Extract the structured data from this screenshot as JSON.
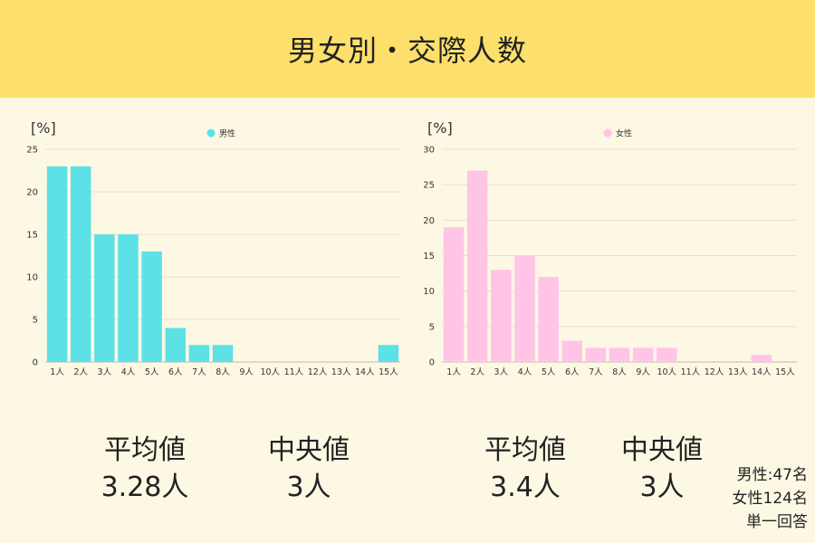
{
  "title": "男女別・交際人数",
  "chart_data": [
    {
      "type": "bar",
      "ylabel": "[%]",
      "ylim": [
        0,
        25
      ],
      "yticks": [
        0,
        5,
        10,
        15,
        20,
        25
      ],
      "grid": true,
      "legend": "top-center",
      "categories": [
        "1人",
        "2人",
        "3人",
        "4人",
        "5人",
        "6人",
        "7人",
        "8人",
        "9人",
        "10人",
        "11人",
        "12人",
        "13人",
        "14人",
        "15人"
      ],
      "series": [
        {
          "name": "男性",
          "color": "#5ce1e6",
          "values": [
            23,
            23,
            15,
            15,
            13,
            4,
            2,
            2,
            0,
            0,
            0,
            0,
            0,
            0,
            2
          ]
        }
      ]
    },
    {
      "type": "bar",
      "ylabel": "[%]",
      "ylim": [
        0,
        30
      ],
      "yticks": [
        0,
        5,
        10,
        15,
        20,
        25,
        30
      ],
      "grid": true,
      "legend": "top-center",
      "categories": [
        "1人",
        "2人",
        "3人",
        "4人",
        "5人",
        "6人",
        "7人",
        "8人",
        "9人",
        "10人",
        "11人",
        "12人",
        "13人",
        "14人",
        "15人"
      ],
      "series": [
        {
          "name": "女性",
          "color": "#ffc4e6",
          "values": [
            19,
            27,
            13,
            15,
            12,
            3,
            2,
            2,
            2,
            2,
            0,
            0,
            0,
            1,
            0
          ]
        }
      ]
    }
  ],
  "stats": {
    "male": {
      "mean_label": "平均値",
      "mean": "3.28人",
      "median_label": "中央値",
      "median": "3人"
    },
    "female": {
      "mean_label": "平均値",
      "mean": "3.4人",
      "median_label": "中央値",
      "median": "3人"
    }
  },
  "footnote": {
    "male_count": "男性:47名",
    "female_count": "女性124名",
    "answer_type": "単一回答"
  }
}
